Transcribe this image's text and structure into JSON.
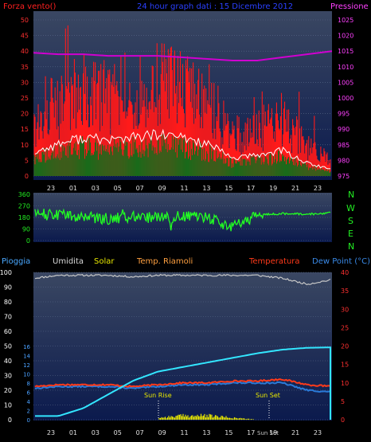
{
  "header": {
    "left_label": "Forza vento()",
    "title": "24 hour graph dati : 15 Dicembre 2012",
    "right_label": "Pressione"
  },
  "compass": [
    "N",
    "W",
    "S",
    "E",
    "N"
  ],
  "legend": {
    "rain": "Pioggia",
    "humidity": "Umidita",
    "solar": "Solar",
    "indoor_temp": "Temp. Riamoli",
    "temperature": "Temperatura",
    "dew_point": "Dew Point (°C)"
  },
  "annotations": {
    "sun_rise": "Sun Rise",
    "sun_set": "Sun Set",
    "sun_set_tick": "Sun Set"
  },
  "colors": {
    "plot_bg_top": "#3c4a64",
    "plot_bg_bottom": "#0a1a4a",
    "gust": "#ff1a1a",
    "wind_avg": "#1a6a1a",
    "wind_line": "#ffffff",
    "pressure": "#d000d0",
    "direction": "#22ff22",
    "humidity": "#c8c8c8",
    "rain": "#33e6ff",
    "temperature": "#ff3a1a",
    "dew_point": "#2a7ad8",
    "solar": "#e8e800",
    "axis_left": "#ff3030",
    "axis_right": "#ff40ff",
    "rain_axis": "#4aa0ff"
  },
  "chart_data": [
    {
      "type": "line",
      "title": "24 hour graph dati : 15 Dicembre 2012",
      "x_ticks": [
        "23",
        "01",
        "03",
        "05",
        "07",
        "09",
        "11",
        "13",
        "15",
        "17",
        "19",
        "21",
        "23"
      ],
      "y_left_label": "Forza vento()",
      "y_left_ticks": [
        0,
        5,
        10,
        15,
        20,
        25,
        30,
        35,
        40,
        45,
        50
      ],
      "ylim_left": [
        0,
        50
      ],
      "y_right_label": "Pressione",
      "y_right_ticks": [
        975,
        980,
        985,
        990,
        995,
        1000,
        1005,
        1010,
        1015,
        1020,
        1025
      ],
      "ylim_right": [
        975,
        1025
      ],
      "series": [
        {
          "name": "Forza vento()",
          "axis": "left",
          "color": "#ff1a1a",
          "x": [
            "23",
            "01",
            "03",
            "05",
            "07",
            "09",
            "11",
            "13",
            "15",
            "17",
            "19",
            "21",
            "23"
          ],
          "values": [
            18,
            25,
            30,
            28,
            30,
            32,
            30,
            25,
            14,
            16,
            20,
            10,
            5
          ]
        },
        {
          "name": "Pressione",
          "axis": "right",
          "color": "#d000d0",
          "x": [
            "23",
            "01",
            "03",
            "05",
            "07",
            "09",
            "11",
            "13",
            "15",
            "17",
            "19",
            "21",
            "23"
          ],
          "values": [
            1014.5,
            1014,
            1014,
            1013.5,
            1013.5,
            1013.5,
            1013,
            1012.5,
            1012,
            1012,
            1013,
            1014,
            1015
          ]
        }
      ]
    },
    {
      "type": "line",
      "x_ticks": [
        "23",
        "01",
        "03",
        "05",
        "07",
        "09",
        "11",
        "13",
        "15",
        "17",
        "19",
        "21",
        "23"
      ],
      "y_ticks": [
        0,
        90,
        180,
        270,
        360
      ],
      "ylim": [
        0,
        360
      ],
      "series": [
        {
          "color": "#22ff22",
          "x": [
            "23",
            "01",
            "03",
            "05",
            "07",
            "09",
            "11",
            "13",
            "15",
            "17",
            "19",
            "21",
            "23"
          ],
          "values": [
            210,
            195,
            180,
            170,
            185,
            175,
            185,
            180,
            100,
            200,
            210,
            205,
            215
          ]
        }
      ]
    },
    {
      "type": "line",
      "x_ticks": [
        "23",
        "01",
        "03",
        "05",
        "07",
        "09",
        "11",
        "13",
        "15",
        "17",
        "19",
        "21",
        "23"
      ],
      "y_left_ticks": [
        0,
        10,
        20,
        30,
        40,
        50,
        60,
        70,
        80,
        90,
        100
      ],
      "ylim_left": [
        0,
        100
      ],
      "y_right_ticks": [
        0,
        5,
        10,
        15,
        20,
        25,
        30,
        35,
        40
      ],
      "ylim_right": [
        0,
        40
      ],
      "rain_ticks": [
        0,
        2,
        4,
        6,
        8,
        10,
        12,
        14,
        16
      ],
      "series": [
        {
          "name": "Umidita",
          "axis": "left",
          "color": "#c8c8c8",
          "x": [
            "23",
            "01",
            "03",
            "05",
            "07",
            "09",
            "11",
            "13",
            "15",
            "17",
            "19",
            "21",
            "23"
          ],
          "values": [
            96,
            98,
            98,
            98,
            97,
            98,
            98,
            98,
            98,
            98,
            96,
            92,
            95
          ]
        },
        {
          "name": "Pioggia",
          "axis": "rain",
          "color": "#33e6ff",
          "x": [
            "23",
            "01",
            "03",
            "05",
            "07",
            "09",
            "11",
            "13",
            "15",
            "17",
            "19",
            "21",
            "23"
          ],
          "values": [
            0.8,
            0.8,
            2.5,
            5.5,
            8.5,
            10.5,
            11.5,
            12.5,
            13.5,
            14.5,
            15.3,
            15.7,
            15.8
          ]
        },
        {
          "name": "Temperatura",
          "axis": "right",
          "color": "#ff3a1a",
          "x": [
            "23",
            "01",
            "03",
            "05",
            "07",
            "09",
            "11",
            "13",
            "15",
            "17",
            "19",
            "21",
            "23"
          ],
          "values": [
            9.0,
            9.5,
            9.5,
            9.5,
            9.0,
            9.5,
            10.0,
            10.0,
            10.5,
            10.5,
            11.0,
            9.5,
            9.0
          ]
        },
        {
          "name": "Dew Point (°C)",
          "axis": "right",
          "color": "#2a7ad8",
          "x": [
            "23",
            "01",
            "03",
            "05",
            "07",
            "09",
            "11",
            "13",
            "15",
            "17",
            "19",
            "21",
            "23"
          ],
          "values": [
            8.5,
            9.0,
            9.0,
            9.0,
            8.5,
            9.0,
            9.5,
            9.5,
            10.0,
            10.0,
            10.0,
            8.0,
            7.5
          ]
        },
        {
          "name": "Solar",
          "axis": "solar",
          "color": "#e8e800",
          "x": [
            "23",
            "01",
            "03",
            "05",
            "07",
            "09",
            "11",
            "13",
            "15",
            "17",
            "19",
            "21",
            "23"
          ],
          "values": [
            0,
            0,
            0,
            0,
            0,
            1,
            2,
            2,
            1,
            0,
            0,
            0,
            0
          ]
        }
      ]
    }
  ]
}
